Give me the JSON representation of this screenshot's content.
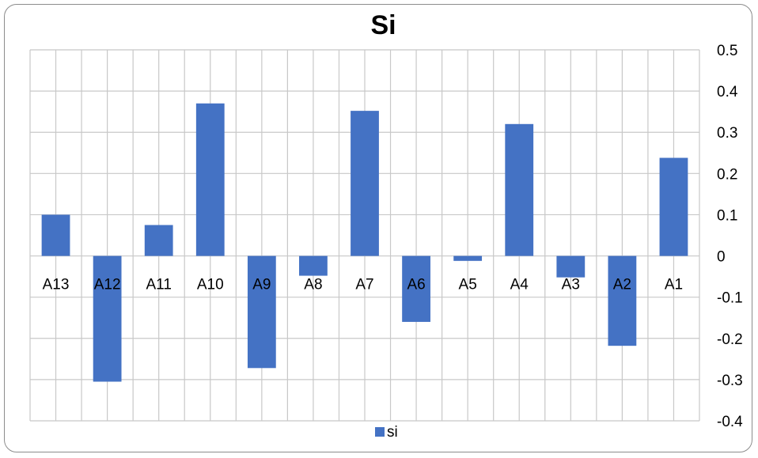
{
  "chart_data": {
    "type": "bar",
    "title": "Si",
    "xlabel": "",
    "ylabel": "",
    "categories": [
      "A13",
      "A12",
      "A11",
      "A10",
      "A9",
      "A8",
      "A7",
      "A6",
      "A5",
      "A4",
      "A3",
      "A2",
      "A1"
    ],
    "series": [
      {
        "name": "si",
        "color": "#4472c4",
        "values": [
          0.1,
          -0.305,
          0.075,
          0.37,
          -0.272,
          -0.048,
          0.352,
          -0.16,
          -0.012,
          0.32,
          -0.052,
          -0.218,
          0.238
        ]
      }
    ],
    "ylim": [
      -0.4,
      0.5
    ],
    "yticks": [
      "0.5",
      "0.4",
      "0.3",
      "0.2",
      "0.1",
      "0",
      "-0.1",
      "-0.2",
      "-0.3",
      "-0.4"
    ],
    "y_axis_side": "right",
    "grid": true,
    "legend": "bottom"
  }
}
